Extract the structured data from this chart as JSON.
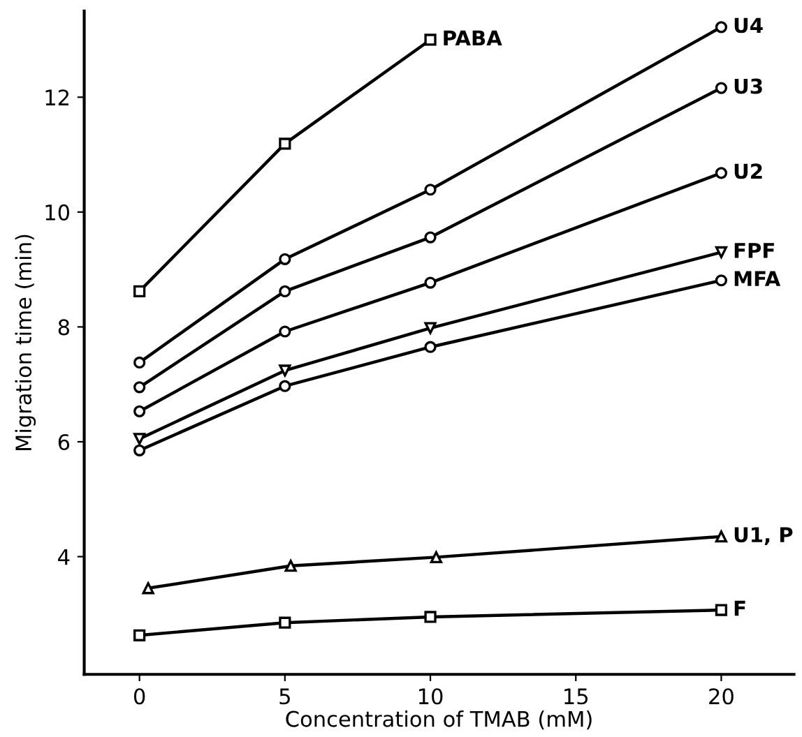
{
  "chart_data": {
    "type": "line",
    "xlabel": "Concentration of TMAB (mM)",
    "ylabel": "Migration time (min)",
    "xlim": [
      -1.9,
      22.5
    ],
    "ylim": [
      1.95,
      13.5
    ],
    "xticks": [
      0,
      5,
      10,
      15,
      20
    ],
    "yticks": [
      4,
      6,
      8,
      10,
      12
    ],
    "grid": false,
    "legend": false,
    "line_style": "solid",
    "series": [
      {
        "name": "PABA",
        "color": "#000000",
        "marker": "square",
        "x": [
          0,
          5,
          10
        ],
        "values": [
          8.62,
          11.19,
          13.0
        ]
      },
      {
        "name": "U4",
        "color": "#000000",
        "marker": "circle",
        "x": [
          0,
          5,
          10,
          20
        ],
        "values": [
          7.38,
          9.18,
          10.39,
          13.22
        ]
      },
      {
        "name": "U3",
        "color": "#000000",
        "marker": "circle",
        "x": [
          0,
          5,
          10,
          20
        ],
        "values": [
          6.95,
          8.62,
          9.56,
          12.16
        ]
      },
      {
        "name": "U2",
        "color": "#000000",
        "marker": "circle",
        "x": [
          0,
          5,
          10,
          20
        ],
        "values": [
          6.53,
          7.92,
          8.77,
          10.68
        ]
      },
      {
        "name": "FPF",
        "color": "#000000",
        "marker": "triangle_down",
        "x": [
          0,
          5,
          10,
          20
        ],
        "values": [
          6.05,
          7.24,
          7.98,
          9.3
        ]
      },
      {
        "name": "MFA",
        "color": "#000000",
        "marker": "circle",
        "x": [
          0,
          5,
          10,
          20
        ],
        "values": [
          5.85,
          6.97,
          7.65,
          8.81
        ]
      },
      {
        "name": "U1, P",
        "color": "#000000",
        "marker": "triangle",
        "x": [
          0.3,
          5.2,
          10.2,
          20
        ],
        "values": [
          3.45,
          3.84,
          3.99,
          4.35
        ]
      },
      {
        "name": "F",
        "color": "#000000",
        "marker": "square",
        "x": [
          0,
          5,
          10,
          20
        ],
        "values": [
          2.63,
          2.85,
          2.95,
          3.07
        ]
      }
    ]
  }
}
